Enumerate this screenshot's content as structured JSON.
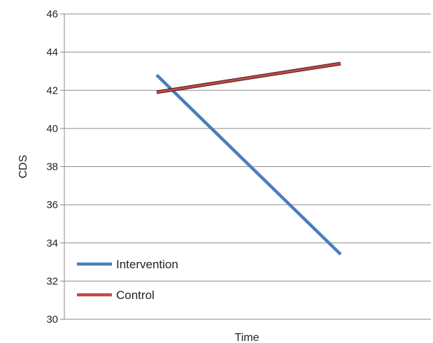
{
  "chart_data": {
    "type": "line",
    "title": "",
    "xlabel": "Time",
    "ylabel": "CDS",
    "ylim": [
      30,
      46
    ],
    "yticks": [
      30,
      32,
      34,
      36,
      38,
      40,
      42,
      44,
      46
    ],
    "grid": true,
    "legend_position": "bottom-left",
    "categories": [
      "",
      ""
    ],
    "series": [
      {
        "name": "Intervention",
        "values": [
          42.8,
          33.4
        ],
        "color": "#4a7ebb"
      },
      {
        "name": "Control",
        "values": [
          41.9,
          43.4
        ],
        "color": "#be4b48"
      }
    ]
  }
}
